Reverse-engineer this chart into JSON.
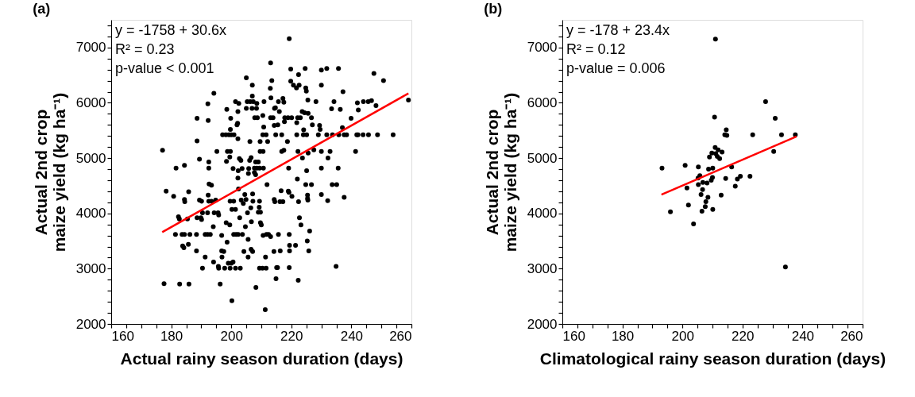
{
  "chart_data": [
    {
      "type": "scatter",
      "title": "(a)",
      "xlabel": "Actual rainy season duration (days)",
      "ylabel": [
        "Actual 2nd crop",
        "maize yield (kg ha⁻¹)"
      ],
      "xlim": [
        160,
        260
      ],
      "ylim": [
        2000,
        7500
      ],
      "xticks": [
        160,
        {
          "value": 165,
          "label": null
        },
        {
          "value": 170,
          "label": null
        },
        {
          "value": 175,
          "label": null
        },
        180,
        {
          "value": 185,
          "label": null
        },
        {
          "value": 190,
          "label": null
        },
        {
          "value": 195,
          "label": null
        },
        200,
        {
          "value": 205,
          "label": null
        },
        {
          "value": 210,
          "label": null
        },
        {
          "value": 215,
          "label": null
        },
        220,
        {
          "value": 225,
          "label": null
        },
        {
          "value": 230,
          "label": null
        },
        {
          "value": 235,
          "label": null
        },
        240,
        {
          "value": 245,
          "label": null
        },
        {
          "value": 250,
          "label": null
        },
        {
          "value": 255,
          "label": null
        },
        260
      ],
      "yticks": [
        2000,
        {
          "value": 2200,
          "label": null
        },
        {
          "value": 2400,
          "label": null
        },
        {
          "value": 2600,
          "label": null
        },
        {
          "value": 2800,
          "label": null
        },
        3000,
        {
          "value": 3200,
          "label": null
        },
        {
          "value": 3400,
          "label": null
        },
        {
          "value": 3600,
          "label": null
        },
        {
          "value": 3800,
          "label": null
        },
        4000,
        {
          "value": 4200,
          "label": null
        },
        {
          "value": 4400,
          "label": null
        },
        {
          "value": 4600,
          "label": null
        },
        {
          "value": 4800,
          "label": null
        },
        5000,
        {
          "value": 5200,
          "label": null
        },
        {
          "value": 5400,
          "label": null
        },
        {
          "value": 5600,
          "label": null
        },
        {
          "value": 5800,
          "label": null
        },
        6000,
        {
          "value": 6200,
          "label": null
        },
        {
          "value": 6400,
          "label": null
        },
        {
          "value": 6600,
          "label": null
        },
        {
          "value": 6800,
          "label": null
        },
        7000,
        {
          "value": 7200,
          "label": null
        },
        {
          "value": 7400,
          "label": null
        }
      ],
      "grid": false,
      "annotations": [
        "y = -1758 + 30.6x",
        "R² = 0.23",
        "p-value < 0.001"
      ],
      "series": [
        {
          "type": "scatter",
          "color": "#000000",
          "marker": "circle",
          "x": [
            213.1,
            205.0,
            213.5,
            207,
            213,
            194.2,
            207,
            205.3,
            206.3,
            207.3,
            201.4,
            202.5,
            208.5,
            210.9,
            213.2,
            192.2,
            198.5,
            214.4,
            205,
            206.9,
            208.4,
            202.2,
            188.6,
            192.3,
            199.8,
            207.8,
            208.7,
            210.5,
            213.1,
            213.9,
            202.1,
            201.9,
            199.7,
            210.8,
            214.3,
            197.1,
            198.2,
            199.2,
            200,
            200.9,
            202.2,
            210.5,
            211.6,
            188.6,
            206.2,
            209.6,
            212.1,
            177.1,
            195.2,
            198.7,
            199.7,
            209.6,
            210.6,
            189.4,
            202.7,
            203.2,
            206.6,
            206.1,
            198.4,
            199.5,
            192.5,
            192.5,
            208.1,
            209,
            181.6,
            184.4,
            200.6,
            202.3,
            203.6,
            205.8,
            207.7,
            208.5,
            209.4,
            210.7,
            205.7,
            208.1,
            207.7,
            202.2,
            211.9,
            192.6,
            193.4,
            178.3,
            180.8,
            185.8,
            202.4,
            204.5,
            207.1,
            192.3,
            184.4,
            184.5,
            189.4,
            190.1,
            192.5,
            193.4,
            194.8,
            199.6,
            200.8,
            203.3,
            204,
            204.9,
            207.2,
            209.4,
            214.3,
            200.2,
            201.4,
            206.5,
            209.3,
            209,
            209.7,
            190.4,
            192.1,
            194.3,
            195.6,
            195.8,
            182.4,
            182.7,
            185.4,
            188.6,
            189.9,
            190.1,
            202.8,
            205.4,
            206.7,
            198.3,
            199.5,
            209.7,
            210,
            194,
            204.7,
            181.4,
            183.6,
            184.4,
            186.2,
            188.4,
            191.3,
            192.1,
            193,
            196.8,
            200.8,
            201.6,
            202.3,
            203.7,
            210.6,
            211.7,
            212.4,
            213.1,
            198.6,
            205.6,
            183.8,
            184.2,
            185.7,
            188.4,
            196.8,
            197.5,
            204.2,
            206.6,
            207.1,
            214.2,
            191.3,
            196.9,
            205.6,
            211.4,
            194.1,
            199,
            200,
            200.6,
            190.4,
            195.7,
            195.8,
            197.8,
            199.6,
            201.4,
            203,
            209.4,
            210.4,
            211.6,
            177.6,
            182.8,
            185.9,
            196.3,
            208.2,
            200.2,
            211.3,
            219.3,
            219.8,
            222.4,
            224.6,
            230,
            231.8,
            235.7,
            219.8,
            220.7,
            221.7,
            222.6,
            224.8,
            225,
            230,
            237.2,
            247.5,
            250.7,
            215.7,
            217.5,
            217.2,
            225.5,
            228.2,
            234.2,
            242,
            244,
            245.6,
            246.7,
            248.2,
            214.7,
            216,
            233.4,
            236.3,
            242.3,
            217.8,
            218.9,
            220.1,
            222.1,
            223,
            223.6,
            224.4,
            225.6,
            226.7,
            239.9,
            215.5,
            217.7,
            221.8,
            227,
            229.4,
            229.6,
            237,
            214.8,
            216.8,
            221.8,
            224.1,
            224,
            225.1,
            229,
            231.8,
            233.7,
            235.8,
            237.6,
            238.4,
            241.8,
            242.2,
            243.9,
            245.7,
            248.7,
            253.9,
            218.7,
            216.8,
            217.5,
            222.2,
            230,
            232.9,
            241.4,
            227.5,
            232.2,
            223.7,
            225.6,
            219.1,
            230,
            235.6,
            225.1,
            222,
            224.8,
            226.7,
            233.6,
            235.1,
            216.6,
            219,
            219.2,
            220.2,
            225.4,
            225.4,
            225.5,
            230,
            237.6,
            232.1,
            222.4,
            217.2,
            216.2,
            214.5,
            222.7,
            223.2,
            215.7,
            219.3,
            226.1,
            225.3,
            225.8,
            221.4,
            219.4,
            219.4,
            216.3,
            215.1,
            215.4,
            219.3,
            234.9,
            214.9,
            222.3,
            259
          ],
          "values": [
            6720,
            6450,
            6400,
            6320,
            6260,
            6170,
            6120,
            6020,
            6020,
            6020,
            6020,
            5990,
            5990,
            6020,
            6090,
            5980,
            5880,
            5900,
            5900,
            5900,
            5900,
            5840,
            5720,
            5680,
            5720,
            5730,
            5730,
            5770,
            5730,
            5730,
            5630,
            5600,
            5520,
            5560,
            5590,
            5420,
            5420,
            5420,
            5420,
            5420,
            5350,
            5420,
            5420,
            5310,
            5300,
            5300,
            5300,
            5140,
            5120,
            5120,
            5120,
            5120,
            5120,
            4980,
            4990,
            4960,
            5010,
            4960,
            4940,
            5020,
            4930,
            4820,
            4930,
            4930,
            4820,
            4870,
            4810,
            4770,
            4810,
            4810,
            4820,
            4820,
            4820,
            4820,
            4720,
            4700,
            4740,
            4640,
            4520,
            4530,
            4510,
            4400,
            4310,
            4390,
            4440,
            4340,
            4350,
            4330,
            4250,
            4210,
            4240,
            4220,
            4220,
            4220,
            4240,
            4220,
            4220,
            4240,
            4180,
            4250,
            4220,
            4220,
            4250,
            4070,
            4070,
            4100,
            4110,
            4020,
            4020,
            4010,
            4010,
            4010,
            4010,
            3970,
            3940,
            3900,
            3900,
            3920,
            3920,
            3890,
            3920,
            4010,
            3850,
            3830,
            3790,
            3830,
            3790,
            3760,
            3760,
            3620,
            3620,
            3620,
            3620,
            3620,
            3620,
            3620,
            3620,
            3600,
            3620,
            3620,
            3620,
            3620,
            3600,
            3620,
            3620,
            3580,
            3480,
            3530,
            3410,
            3380,
            3440,
            3320,
            3320,
            3310,
            3310,
            3350,
            3310,
            3310,
            3210,
            3210,
            3210,
            3210,
            3120,
            3100,
            3100,
            3120,
            3010,
            3040,
            3010,
            3010,
            3010,
            3010,
            3010,
            3010,
            3010,
            3010,
            2730,
            2720,
            2720,
            2720,
            2660,
            2420,
            2260,
            7160,
            6610,
            6510,
            6620,
            6590,
            6620,
            6620,
            6390,
            6320,
            6270,
            6320,
            6270,
            6210,
            6320,
            6200,
            6530,
            6400,
            6020,
            6010,
            6080,
            6050,
            6020,
            6020,
            6000,
            6020,
            6020,
            6040,
            5950,
            5910,
            5840,
            5890,
            5880,
            5870,
            5730,
            5730,
            5730,
            5730,
            5730,
            5840,
            5820,
            5810,
            5730,
            5720,
            5600,
            5660,
            5640,
            5600,
            5590,
            5520,
            5550,
            5420,
            5420,
            5420,
            5510,
            5420,
            5420,
            5420,
            5420,
            5420,
            5420,
            5420,
            5420,
            5420,
            5420,
            5420,
            5420,
            5420,
            5420,
            5300,
            5120,
            5140,
            5120,
            5120,
            5120,
            5120,
            5150,
            5000,
            5000,
            5090,
            4820,
            4820,
            4820,
            4770,
            4620,
            4520,
            4520,
            4520,
            4520,
            4410,
            4400,
            4380,
            4310,
            4330,
            4270,
            4240,
            4340,
            4290,
            4230,
            4210,
            4210,
            4210,
            4210,
            3920,
            3790,
            3620,
            3620,
            3680,
            3500,
            3320,
            3420,
            3420,
            3320,
            3320,
            3020,
            3020,
            3020,
            3040,
            2820,
            2790,
            6050
          ]
        },
        {
          "type": "line",
          "color": "#ff0000",
          "x": [
            177,
            259
          ],
          "values": [
            3660,
            6170
          ]
        }
      ]
    },
    {
      "type": "scatter",
      "title": "(b)",
      "xlabel": "Climatological rainy season duration (days)",
      "ylabel": [
        "Actual 2nd crop",
        "maize yield (kg ha⁻¹)"
      ],
      "xlim": [
        160,
        260
      ],
      "ylim": [
        2000,
        7500
      ],
      "xticks": [
        160,
        {
          "value": 165,
          "label": null
        },
        {
          "value": 170,
          "label": null
        },
        {
          "value": 175,
          "label": null
        },
        180,
        {
          "value": 185,
          "label": null
        },
        {
          "value": 190,
          "label": null
        },
        {
          "value": 195,
          "label": null
        },
        200,
        {
          "value": 205,
          "label": null
        },
        {
          "value": 210,
          "label": null
        },
        {
          "value": 215,
          "label": null
        },
        220,
        {
          "value": 225,
          "label": null
        },
        {
          "value": 230,
          "label": null
        },
        {
          "value": 235,
          "label": null
        },
        240,
        {
          "value": 245,
          "label": null
        },
        {
          "value": 250,
          "label": null
        },
        {
          "value": 255,
          "label": null
        },
        260
      ],
      "yticks": [
        2000,
        {
          "value": 2200,
          "label": null
        },
        {
          "value": 2400,
          "label": null
        },
        {
          "value": 2600,
          "label": null
        },
        {
          "value": 2800,
          "label": null
        },
        3000,
        {
          "value": 3200,
          "label": null
        },
        {
          "value": 3400,
          "label": null
        },
        {
          "value": 3600,
          "label": null
        },
        {
          "value": 3800,
          "label": null
        },
        4000,
        {
          "value": 4200,
          "label": null
        },
        {
          "value": 4400,
          "label": null
        },
        {
          "value": 4600,
          "label": null
        },
        {
          "value": 4800,
          "label": null
        },
        5000,
        {
          "value": 5200,
          "label": null
        },
        {
          "value": 5400,
          "label": null
        },
        {
          "value": 5600,
          "label": null
        },
        {
          "value": 5800,
          "label": null
        },
        6000,
        {
          "value": 6200,
          "label": null
        },
        {
          "value": 6400,
          "label": null
        },
        {
          "value": 6600,
          "label": null
        },
        {
          "value": 6800,
          "label": null
        },
        7000,
        {
          "value": 7200,
          "label": null
        },
        {
          "value": 7400,
          "label": null
        }
      ],
      "grid": false,
      "annotations": [
        "y = -178 + 23.4x",
        "R² = 0.12",
        "p-value = 0.006"
      ],
      "series": [
        {
          "type": "scatter",
          "color": "#000000",
          "marker": "circle",
          "x": [
            211,
            227.7,
            210.7,
            230.9,
            214.6,
            214.1,
            214.8,
            223.4,
            233,
            237.6,
            210.9,
            211.9,
            213.2,
            209.8,
            211.1,
            211.6,
            212.4,
            209,
            230.4,
            193.2,
            200.9,
            205.3,
            216.4,
            208.7,
            210.1,
            205.8,
            205.2,
            210,
            209.6,
            214.4,
            219.3,
            218.3,
            222.5,
            205.3,
            206.8,
            208.2,
            201.5,
            206.7,
            206.2,
            212.9,
            217.6,
            208.5,
            207.8,
            207.6,
            202,
            206.5,
            210.1,
            196,
            203.7,
            234.3
          ],
          "values": [
            7150,
            6020,
            5740,
            5720,
            5510,
            5420,
            5410,
            5420,
            5420,
            5420,
            5190,
            5150,
            5110,
            5090,
            5080,
            5030,
            4990,
            5020,
            5120,
            4820,
            4870,
            4840,
            4840,
            4800,
            4820,
            4680,
            4640,
            4650,
            4600,
            4630,
            4670,
            4620,
            4670,
            4520,
            4560,
            4550,
            4460,
            4430,
            4340,
            4330,
            4490,
            4290,
            4210,
            4120,
            4150,
            4040,
            4070,
            4030,
            3810,
            3030
          ]
        },
        {
          "type": "line",
          "color": "#ff0000",
          "x": [
            193,
            238
          ],
          "values": [
            4340,
            5390
          ]
        }
      ]
    }
  ]
}
